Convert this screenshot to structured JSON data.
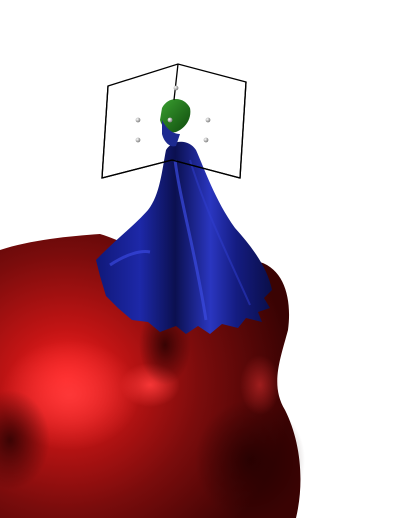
{
  "scene": {
    "background_color": "#ffffff",
    "red_surface": {
      "base_color": "#7a0c0c",
      "highlight_color": "#ff2a2a",
      "shadow_color": "#3a0303"
    },
    "blue_surface": {
      "base_color": "#1a2290",
      "highlight_color": "#3a4ae0",
      "shadow_color": "#070a3a"
    },
    "green_cap": {
      "base_color": "#1d6a1a",
      "highlight_color": "#3aa030"
    },
    "bounding_box": {
      "edge_color": "#000000",
      "marker_color": "#9a9a9a"
    }
  }
}
